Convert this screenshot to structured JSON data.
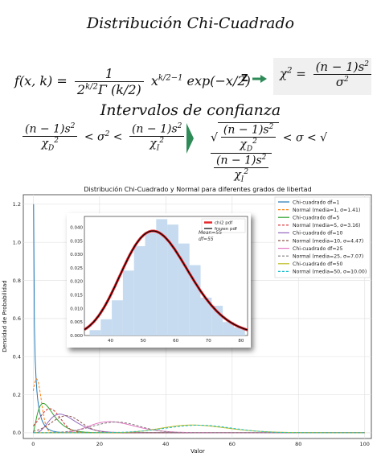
{
  "header": {
    "title": "Distribución Chi-Cuadrado",
    "subtitle": "Intervalos de confianza",
    "z_label": "Z"
  },
  "chart_data": [
    {
      "type": "line",
      "title": "Distribución Chi-Cuadrado y Normal para diferentes grados de libertad",
      "xlabel": "Valor",
      "ylabel": "Densidad de Probabilidad",
      "xlim": [
        -3,
        102
      ],
      "ylim": [
        -0.03,
        1.25
      ],
      "xticks": [
        0,
        20,
        40,
        60,
        80,
        100
      ],
      "yticks": [
        0.0,
        0.2,
        0.4,
        0.6,
        0.8,
        1.0,
        1.2
      ],
      "grid": true,
      "legend_position": "top-right",
      "series": [
        {
          "name": "Chi-cuadrado df=1",
          "color": "#1f77b4",
          "style": "solid",
          "dist": "chi2",
          "df": 1
        },
        {
          "name": "Normal (media=1, σ=1.41)",
          "color": "#ff7f0e",
          "style": "dashed",
          "dist": "normal",
          "mean": 1,
          "sd": 1.41
        },
        {
          "name": "Chi-cuadrado df=5",
          "color": "#2ca02c",
          "style": "solid",
          "dist": "chi2",
          "df": 5
        },
        {
          "name": "Normal (media=5, σ=3.16)",
          "color": "#d62728",
          "style": "dashed",
          "dist": "normal",
          "mean": 5,
          "sd": 3.16
        },
        {
          "name": "Chi-cuadrado df=10",
          "color": "#9467bd",
          "style": "solid",
          "dist": "chi2",
          "df": 10
        },
        {
          "name": "Normal (media=10, σ=4.47)",
          "color": "#8c564b",
          "style": "dashed",
          "dist": "normal",
          "mean": 10,
          "sd": 4.47
        },
        {
          "name": "Chi-cuadrado df=25",
          "color": "#e377c2",
          "style": "solid",
          "dist": "chi2",
          "df": 25
        },
        {
          "name": "Normal (media=25, σ=7.07)",
          "color": "#7f7f7f",
          "style": "dashed",
          "dist": "normal",
          "mean": 25,
          "sd": 7.07
        },
        {
          "name": "Chi-cuadrado df=50",
          "color": "#bcbd22",
          "style": "solid",
          "dist": "chi2",
          "df": 50
        },
        {
          "name": "Normal (media=50, σ=10.00)",
          "color": "#17becf",
          "style": "dashed",
          "dist": "normal",
          "mean": 50,
          "sd": 10.0
        }
      ]
    },
    {
      "type": "bar",
      "title": "",
      "annotation": [
        "Mean=55",
        "df=55"
      ],
      "xlim": [
        32,
        82
      ],
      "ylim": [
        0,
        0.044
      ],
      "xticks": [
        40,
        50,
        60,
        70,
        80
      ],
      "yticks": [
        0.0,
        0.005,
        0.01,
        0.015,
        0.02,
        0.025,
        0.03,
        0.035,
        0.04
      ],
      "hist_color": "#c6dbef",
      "hist": {
        "edges": [
          33.6,
          37.0,
          40.4,
          43.8,
          47.2,
          50.6,
          54.0,
          57.4,
          60.8,
          64.2,
          67.6,
          71.0,
          74.4,
          77.8,
          81.2
        ],
        "density": [
          0.002,
          0.006,
          0.013,
          0.024,
          0.033,
          0.038,
          0.043,
          0.041,
          0.034,
          0.026,
          0.014,
          0.011,
          0.005,
          0.003
        ]
      },
      "series": [
        {
          "name": "chi2 pdf",
          "color": "#e6282e",
          "style": "solid",
          "dist": "chi2",
          "df": 55
        },
        {
          "name": "frozen pdf",
          "color": "#000000",
          "style": "solid",
          "dist": "chi2",
          "df": 55
        }
      ]
    }
  ]
}
